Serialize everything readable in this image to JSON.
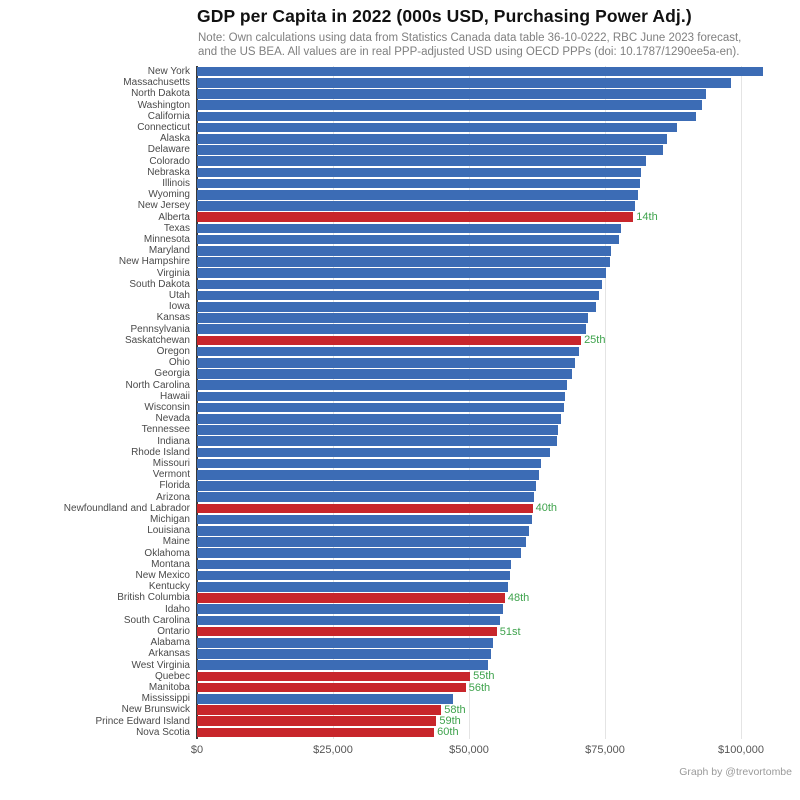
{
  "header": {
    "title": "GDP per Capita in 2022 (000s USD, Purchasing Power Adj.)",
    "note_line1": "Note: Own calculations using data from Statistics Canada data table 36-10-0222, RBC June 2023 forecast,",
    "note_line2": "and the US BEA. All values are in real PPP-adjusted USD using OECD PPPs (doi: 10.1787/1290ee5a-en)."
  },
  "caption": "Graph by @trevortombe",
  "colors": {
    "us_bar": "#3c6cb5",
    "canada_bar": "#c8262b",
    "rank_label": "#3fa34d",
    "gridline": "#e4e4e4",
    "axis_line": "#3a3a3a"
  },
  "x_axis": {
    "ticks": [
      "$0",
      "$25,000",
      "$50,000",
      "$75,000",
      "$100,000"
    ],
    "tick_values_usd": [
      0,
      25000,
      50000,
      75000,
      100000
    ]
  },
  "chart_data": {
    "type": "bar",
    "orientation": "horizontal",
    "title": "GDP per Capita in 2022 (000s USD, Purchasing Power Adj.)",
    "unit": "thousands of PPP-adjusted USD",
    "xlim": [
      0,
      109
    ],
    "grid": "vertical gridlines at $25,000 intervals",
    "legend": "none (blue = US state, red = Canadian province, green text = Canadian rank)",
    "items": [
      {
        "label": "New York",
        "value": 104.0,
        "group": "US state"
      },
      {
        "label": "Massachusetts",
        "value": 98.2,
        "group": "US state"
      },
      {
        "label": "North Dakota",
        "value": 93.6,
        "group": "US state"
      },
      {
        "label": "Washington",
        "value": 92.8,
        "group": "US state"
      },
      {
        "label": "California",
        "value": 91.7,
        "group": "US state"
      },
      {
        "label": "Connecticut",
        "value": 88.2,
        "group": "US state"
      },
      {
        "label": "Alaska",
        "value": 86.4,
        "group": "US state"
      },
      {
        "label": "Delaware",
        "value": 85.6,
        "group": "US state"
      },
      {
        "label": "Colorado",
        "value": 82.5,
        "group": "US state"
      },
      {
        "label": "Nebraska",
        "value": 81.7,
        "group": "US state"
      },
      {
        "label": "Illinois",
        "value": 81.4,
        "group": "US state"
      },
      {
        "label": "Wyoming",
        "value": 81.0,
        "group": "US state"
      },
      {
        "label": "New Jersey",
        "value": 80.6,
        "group": "US state"
      },
      {
        "label": "Alberta",
        "value": 80.2,
        "group": "Canadian province",
        "rank": "14th"
      },
      {
        "label": "Texas",
        "value": 77.9,
        "group": "US state"
      },
      {
        "label": "Minnesota",
        "value": 77.6,
        "group": "US state"
      },
      {
        "label": "Maryland",
        "value": 76.1,
        "group": "US state"
      },
      {
        "label": "New Hampshire",
        "value": 75.9,
        "group": "US state"
      },
      {
        "label": "Virginia",
        "value": 75.2,
        "group": "US state"
      },
      {
        "label": "South Dakota",
        "value": 74.4,
        "group": "US state"
      },
      {
        "label": "Utah",
        "value": 73.9,
        "group": "US state"
      },
      {
        "label": "Iowa",
        "value": 73.3,
        "group": "US state"
      },
      {
        "label": "Kansas",
        "value": 71.9,
        "group": "US state"
      },
      {
        "label": "Pennsylvania",
        "value": 71.5,
        "group": "US state"
      },
      {
        "label": "Saskatchewan",
        "value": 70.6,
        "group": "Canadian province",
        "rank": "25th"
      },
      {
        "label": "Oregon",
        "value": 70.2,
        "group": "US state"
      },
      {
        "label": "Ohio",
        "value": 69.5,
        "group": "US state"
      },
      {
        "label": "Georgia",
        "value": 68.9,
        "group": "US state"
      },
      {
        "label": "North Carolina",
        "value": 68.0,
        "group": "US state"
      },
      {
        "label": "Hawaii",
        "value": 67.6,
        "group": "US state"
      },
      {
        "label": "Wisconsin",
        "value": 67.5,
        "group": "US state"
      },
      {
        "label": "Nevada",
        "value": 66.9,
        "group": "US state"
      },
      {
        "label": "Tennessee",
        "value": 66.4,
        "group": "US state"
      },
      {
        "label": "Indiana",
        "value": 66.2,
        "group": "US state"
      },
      {
        "label": "Rhode Island",
        "value": 64.9,
        "group": "US state"
      },
      {
        "label": "Missouri",
        "value": 63.2,
        "group": "US state"
      },
      {
        "label": "Vermont",
        "value": 62.9,
        "group": "US state"
      },
      {
        "label": "Florida",
        "value": 62.3,
        "group": "US state"
      },
      {
        "label": "Arizona",
        "value": 61.9,
        "group": "US state"
      },
      {
        "label": "Newfoundland and Labrador",
        "value": 61.7,
        "group": "Canadian province",
        "rank": "40th"
      },
      {
        "label": "Michigan",
        "value": 61.6,
        "group": "US state"
      },
      {
        "label": "Louisiana",
        "value": 61.0,
        "group": "US state"
      },
      {
        "label": "Maine",
        "value": 60.5,
        "group": "US state"
      },
      {
        "label": "Oklahoma",
        "value": 59.6,
        "group": "US state"
      },
      {
        "label": "Montana",
        "value": 57.7,
        "group": "US state"
      },
      {
        "label": "New Mexico",
        "value": 57.5,
        "group": "US state"
      },
      {
        "label": "Kentucky",
        "value": 57.2,
        "group": "US state"
      },
      {
        "label": "British Columbia",
        "value": 56.6,
        "group": "Canadian province",
        "rank": "48th"
      },
      {
        "label": "Idaho",
        "value": 56.3,
        "group": "US state"
      },
      {
        "label": "South Carolina",
        "value": 55.7,
        "group": "US state"
      },
      {
        "label": "Ontario",
        "value": 55.1,
        "group": "Canadian province",
        "rank": "51st"
      },
      {
        "label": "Alabama",
        "value": 54.4,
        "group": "US state"
      },
      {
        "label": "Arkansas",
        "value": 54.0,
        "group": "US state"
      },
      {
        "label": "West Virginia",
        "value": 53.5,
        "group": "US state"
      },
      {
        "label": "Quebec",
        "value": 50.2,
        "group": "Canadian province",
        "rank": "55th"
      },
      {
        "label": "Manitoba",
        "value": 49.4,
        "group": "Canadian province",
        "rank": "56th"
      },
      {
        "label": "Mississippi",
        "value": 47.1,
        "group": "US state"
      },
      {
        "label": "New Brunswick",
        "value": 44.9,
        "group": "Canadian province",
        "rank": "58th"
      },
      {
        "label": "Prince Edward Island",
        "value": 44.0,
        "group": "Canadian province",
        "rank": "59th"
      },
      {
        "label": "Nova Scotia",
        "value": 43.6,
        "group": "Canadian province",
        "rank": "60th"
      }
    ]
  }
}
